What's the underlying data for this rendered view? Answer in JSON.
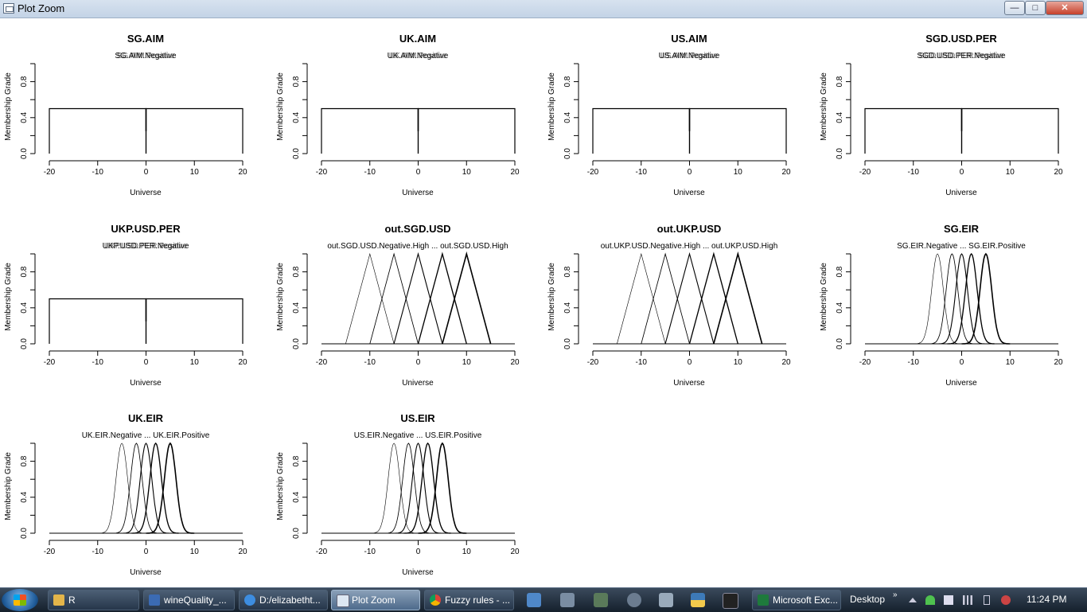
{
  "window": {
    "title": "Plot Zoom",
    "minimize_glyph": "—",
    "maximize_glyph": "□",
    "close_glyph": "✕",
    "icon": "plot-window-icon"
  },
  "chart_data": [
    {
      "type": "line",
      "shape": "rect",
      "title": "SG.AIM",
      "legend_text": "SG.AIM.Negative",
      "legend_text2": "SG.AIM.Positive",
      "xlabel": "Universe",
      "ylabel": "Membership Grade",
      "xticks": [
        "-20",
        "-10",
        "0",
        "10",
        "20"
      ],
      "yticks": [
        "0.0",
        "0.4",
        "0.8"
      ],
      "xlim": [
        -20,
        20
      ],
      "ylim": [
        0,
        1
      ],
      "series": [
        {
          "name": "SG.AIM.Negative",
          "x": [
            -20,
            -20,
            0,
            0
          ],
          "y": [
            0,
            0.5,
            0.5,
            0
          ]
        },
        {
          "name": "SG.AIM.Positive",
          "x": [
            0,
            0,
            20,
            20
          ],
          "y": [
            0,
            0.5,
            0.5,
            0
          ]
        }
      ]
    },
    {
      "type": "line",
      "shape": "rect",
      "title": "UK.AIM",
      "legend_text": "UK.AIM.Negative",
      "legend_text2": "UK.AIM.Positive",
      "xlabel": "Universe",
      "ylabel": "Membership Grade",
      "xticks": [
        "-20",
        "-10",
        "0",
        "10",
        "20"
      ],
      "yticks": [
        "0.0",
        "0.4",
        "0.8"
      ],
      "xlim": [
        -20,
        20
      ],
      "ylim": [
        0,
        1
      ],
      "series": [
        {
          "name": "UK.AIM.Negative",
          "x": [
            -20,
            -20,
            0,
            0
          ],
          "y": [
            0,
            0.5,
            0.5,
            0
          ]
        },
        {
          "name": "UK.AIM.Positive",
          "x": [
            0,
            0,
            20,
            20
          ],
          "y": [
            0,
            0.5,
            0.5,
            0
          ]
        }
      ]
    },
    {
      "type": "line",
      "shape": "rect",
      "title": "US.AIM",
      "legend_text": "US.AIM.Negative",
      "legend_text2": "US.AIM.Positive",
      "xlabel": "Universe",
      "ylabel": "Membership Grade",
      "xticks": [
        "-20",
        "-10",
        "0",
        "10",
        "20"
      ],
      "yticks": [
        "0.0",
        "0.4",
        "0.8"
      ],
      "xlim": [
        -20,
        20
      ],
      "ylim": [
        0,
        1
      ],
      "series": [
        {
          "name": "US.AIM.Negative",
          "x": [
            -20,
            -20,
            0,
            0
          ],
          "y": [
            0,
            0.5,
            0.5,
            0
          ]
        },
        {
          "name": "US.AIM.Positive",
          "x": [
            0,
            0,
            20,
            20
          ],
          "y": [
            0,
            0.5,
            0.5,
            0
          ]
        }
      ]
    },
    {
      "type": "line",
      "shape": "rect",
      "title": "SGD.USD.PER",
      "legend_text": "SGD.USD.PER.Negative",
      "legend_text2": "SGD.USD.PER.Positive",
      "xlabel": "Universe",
      "ylabel": "Membership Grade",
      "xticks": [
        "-20",
        "-10",
        "0",
        "10",
        "20"
      ],
      "yticks": [
        "0.0",
        "0.4",
        "0.8"
      ],
      "xlim": [
        -20,
        20
      ],
      "ylim": [
        0,
        1
      ],
      "series": [
        {
          "name": "SGD.USD.PER.Negative",
          "x": [
            -20,
            -20,
            0,
            0
          ],
          "y": [
            0,
            0.5,
            0.5,
            0
          ]
        },
        {
          "name": "SGD.USD.PER.Positive",
          "x": [
            0,
            0,
            20,
            20
          ],
          "y": [
            0,
            0.5,
            0.5,
            0
          ]
        }
      ]
    },
    {
      "type": "line",
      "shape": "rect",
      "title": "UKP.USD.PER",
      "legend_text": "UKP.USD.PER.Negative",
      "legend_text2": "UKP.USD.PER.Positive",
      "xlabel": "Universe",
      "ylabel": "Membership Grade",
      "xticks": [
        "-20",
        "-10",
        "0",
        "10",
        "20"
      ],
      "yticks": [
        "0.0",
        "0.4",
        "0.8"
      ],
      "xlim": [
        -20,
        20
      ],
      "ylim": [
        0,
        1
      ],
      "series": [
        {
          "name": "UKP.USD.PER.Negative",
          "x": [
            -20,
            -20,
            0,
            0
          ],
          "y": [
            0,
            0.5,
            0.5,
            0
          ]
        },
        {
          "name": "UKP.USD.PER.Positive",
          "x": [
            0,
            0,
            20,
            20
          ],
          "y": [
            0,
            0.5,
            0.5,
            0
          ]
        }
      ]
    },
    {
      "type": "line",
      "shape": "tri",
      "title": "out.SGD.USD",
      "legend_text": "out.SGD.USD.Negative.High ... out.SGD.USD.High",
      "legend_text2": "",
      "xlabel": "Universe",
      "ylabel": "Membership Grade",
      "xticks": [
        "-20",
        "-10",
        "0",
        "10",
        "20"
      ],
      "yticks": [
        "0.0",
        "0.4",
        "0.8"
      ],
      "xlim": [
        -20,
        20
      ],
      "ylim": [
        0,
        1
      ],
      "series": [
        {
          "center": -10,
          "half_width": 5
        },
        {
          "center": -5,
          "half_width": 5
        },
        {
          "center": 0,
          "half_width": 5
        },
        {
          "center": 5,
          "half_width": 5
        },
        {
          "center": 10,
          "half_width": 5
        }
      ]
    },
    {
      "type": "line",
      "shape": "tri",
      "title": "out.UKP.USD",
      "legend_text": "out.UKP.USD.Negative.High ... out.UKP.USD.High",
      "legend_text2": "",
      "xlabel": "Universe",
      "ylabel": "Membership Grade",
      "xticks": [
        "-20",
        "-10",
        "0",
        "10",
        "20"
      ],
      "yticks": [
        "0.0",
        "0.4",
        "0.8"
      ],
      "xlim": [
        -20,
        20
      ],
      "ylim": [
        0,
        1
      ],
      "series": [
        {
          "center": -10,
          "half_width": 5
        },
        {
          "center": -5,
          "half_width": 5
        },
        {
          "center": 0,
          "half_width": 5
        },
        {
          "center": 5,
          "half_width": 5
        },
        {
          "center": 10,
          "half_width": 5
        }
      ]
    },
    {
      "type": "line",
      "shape": "gauss",
      "title": "SG.EIR",
      "legend_text": "SG.EIR.Negative ... SG.EIR.Positive",
      "legend_text2": "",
      "xlabel": "Universe",
      "ylabel": "Membership Grade",
      "xticks": [
        "-20",
        "-10",
        "0",
        "10",
        "20"
      ],
      "yticks": [
        "0.0",
        "0.4",
        "0.8"
      ],
      "xlim": [
        -20,
        20
      ],
      "ylim": [
        0,
        1
      ],
      "series": [
        {
          "mean": -5,
          "sd": 1.2
        },
        {
          "mean": -2,
          "sd": 1.2
        },
        {
          "mean": 0,
          "sd": 1.2
        },
        {
          "mean": 2,
          "sd": 1.2
        },
        {
          "mean": 5,
          "sd": 1.2
        }
      ]
    },
    {
      "type": "line",
      "shape": "gauss",
      "title": "UK.EIR",
      "legend_text": "UK.EIR.Negative ... UK.EIR.Positive",
      "legend_text2": "",
      "xlabel": "Universe",
      "ylabel": "Membership Grade",
      "xticks": [
        "-20",
        "-10",
        "0",
        "10",
        "20"
      ],
      "yticks": [
        "0.0",
        "0.4",
        "0.8"
      ],
      "xlim": [
        -20,
        20
      ],
      "ylim": [
        0,
        1
      ],
      "series": [
        {
          "mean": -5,
          "sd": 1.2
        },
        {
          "mean": -2,
          "sd": 1.2
        },
        {
          "mean": 0,
          "sd": 1.2
        },
        {
          "mean": 2,
          "sd": 1.2
        },
        {
          "mean": 5,
          "sd": 1.2
        }
      ]
    },
    {
      "type": "line",
      "shape": "gauss",
      "title": "US.EIR",
      "legend_text": "US.EIR.Negative ... US.EIR.Positive",
      "legend_text2": "",
      "xlabel": "Universe",
      "ylabel": "Membership Grade",
      "xticks": [
        "-20",
        "-10",
        "0",
        "10",
        "20"
      ],
      "yticks": [
        "0.0",
        "0.4",
        "0.8"
      ],
      "xlim": [
        -20,
        20
      ],
      "ylim": [
        0,
        1
      ],
      "series": [
        {
          "mean": -5,
          "sd": 1.2
        },
        {
          "mean": -2,
          "sd": 1.2
        },
        {
          "mean": 0,
          "sd": 1.2
        },
        {
          "mean": 2,
          "sd": 1.2
        },
        {
          "mean": 5,
          "sd": 1.2
        }
      ]
    }
  ],
  "taskbar": {
    "start_icon": "windows-start-orb",
    "items": [
      {
        "label": "R",
        "icon": "folder-icon",
        "color": "#e3b54a"
      },
      {
        "label": "wineQuality_...",
        "icon": "rstudio-doc-icon",
        "color": "#3b6bb3"
      },
      {
        "label": "D:/elizabetht...",
        "icon": "ie-icon",
        "color": "#3d8de0"
      },
      {
        "label": "Plot Zoom",
        "icon": "plot-window-icon",
        "color": "#dde7f2"
      },
      {
        "label": "Fuzzy rules - ...",
        "icon": "chrome-icon",
        "color": "#e3a425"
      },
      {
        "label": "Microsoft Exc...",
        "icon": "excel-icon",
        "color": "#1e7a3c"
      }
    ],
    "desktop_label": "Desktop",
    "desktop_chevron": "»",
    "clock": "11:24 PM"
  }
}
